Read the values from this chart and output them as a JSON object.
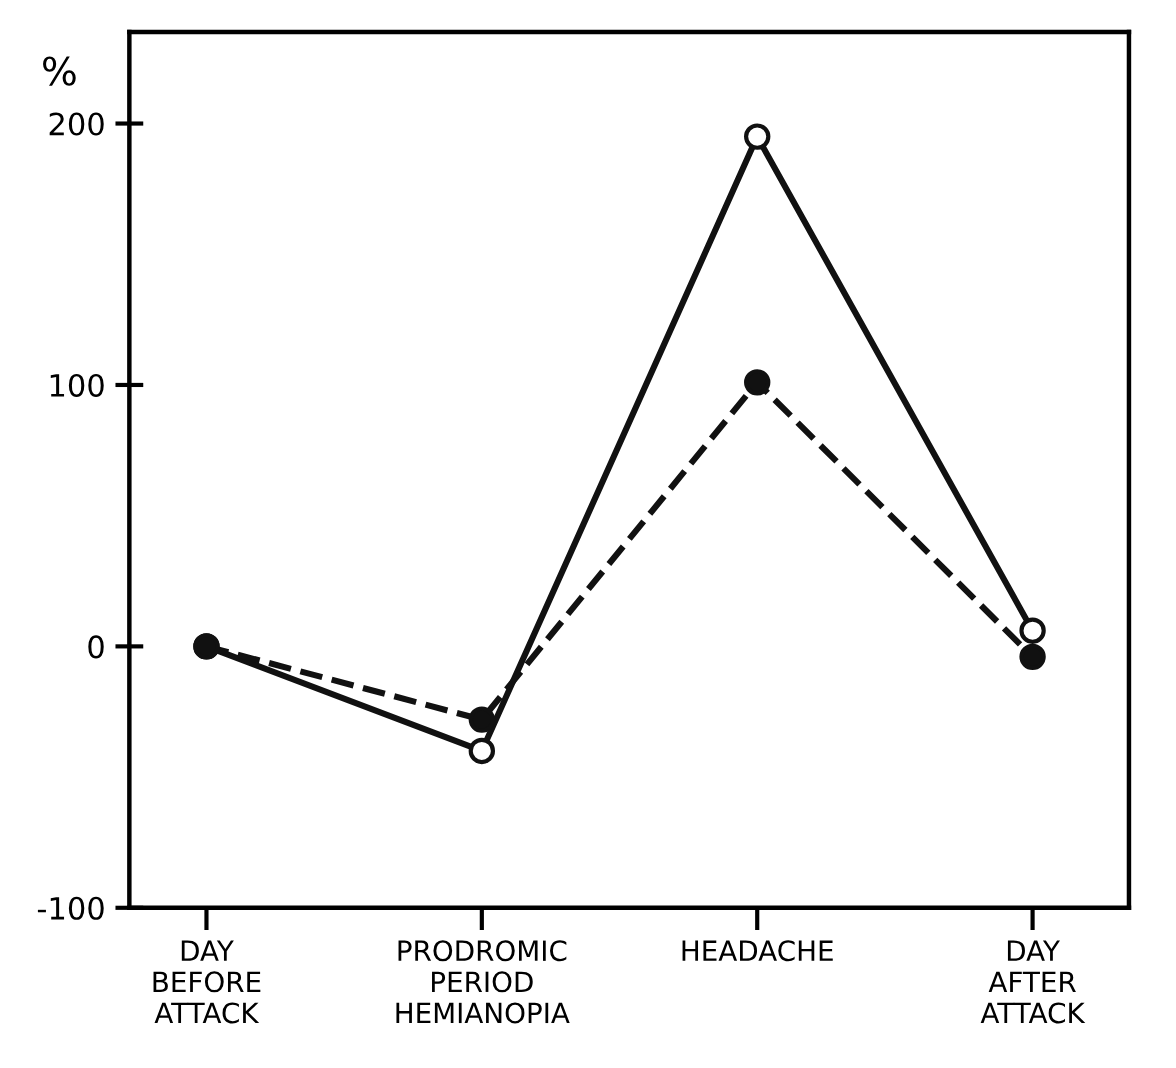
{
  "chart_data": {
    "type": "line",
    "ylabel": "%",
    "categories": [
      "DAY\nBEFORE\nATTACK",
      "PRODROMIC\nPERIOD\nHEMIANOPIA",
      "HEADACHE",
      "DAY\nAFTER\nATTACK"
    ],
    "series": [
      {
        "color": "#111111",
        "values": [
          0,
          -40,
          195,
          6
        ],
        "marker": "circle",
        "line_style": "solid"
      },
      {
        "color": "#111111",
        "values": [
          0,
          -28,
          101,
          -4
        ],
        "marker": "circle",
        "line_style": "dashed"
      }
    ],
    "ylim": [
      -100,
      235
    ],
    "yticks": [
      -100,
      0,
      100,
      200
    ],
    "grid": false,
    "legend": false
  }
}
